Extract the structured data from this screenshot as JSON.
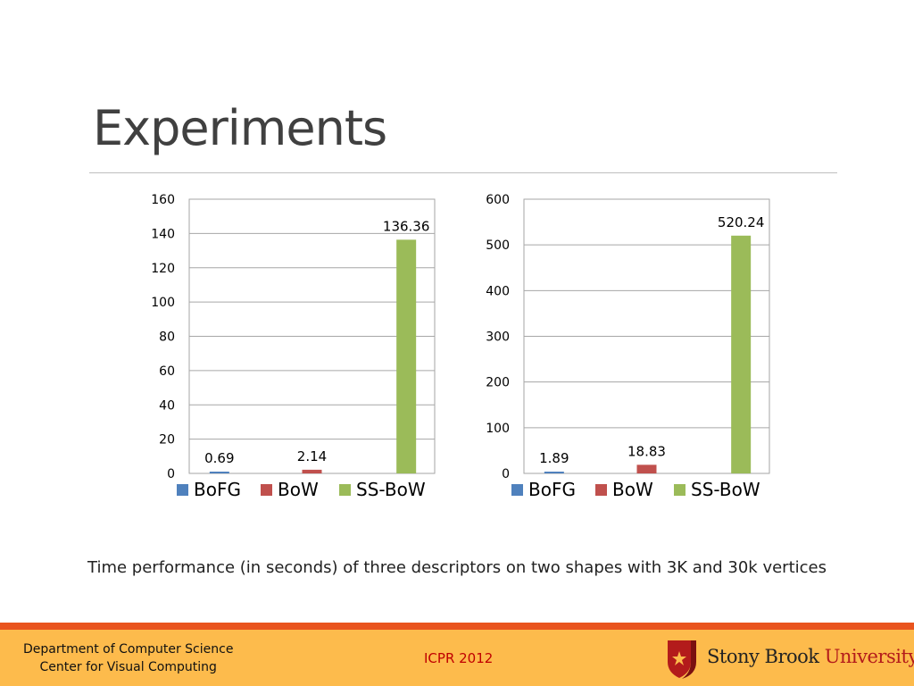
{
  "slide": {
    "title": "Experiments",
    "caption": "Time performance (in seconds) of three descriptors on two shapes with 3K and 30k vertices"
  },
  "footer": {
    "dept_line1": "Department of Computer Science",
    "dept_line2": "Center for Visual Computing",
    "conference": "ICPR 2012",
    "university_name": "Stony Brook",
    "university_suffix": "University"
  },
  "colors": {
    "BoFG": "#4f81bd",
    "BoW": "#c0504d",
    "SS-BoW": "#9bbb59",
    "footer_bar": "#fdbb4c",
    "footer_stripe": "#e9541e"
  },
  "chart_data": [
    {
      "type": "bar",
      "categories": [
        "BoFG",
        "BoW",
        "SS-BoW"
      ],
      "values": [
        0.69,
        2.14,
        136.36
      ],
      "data_labels": [
        "0.69",
        "2.14",
        "136.36"
      ],
      "ylim": [
        0,
        160
      ],
      "yticks": [
        0,
        20,
        40,
        60,
        80,
        100,
        120,
        140,
        160
      ],
      "grid": true,
      "legend": "bottom"
    },
    {
      "type": "bar",
      "categories": [
        "BoFG",
        "BoW",
        "SS-BoW"
      ],
      "values": [
        1.89,
        18.83,
        520.24
      ],
      "data_labels": [
        "1.89",
        "18.83",
        "520.24"
      ],
      "ylim": [
        0,
        600
      ],
      "yticks": [
        0,
        100,
        200,
        300,
        400,
        500,
        600
      ],
      "grid": true,
      "legend": "bottom"
    }
  ]
}
